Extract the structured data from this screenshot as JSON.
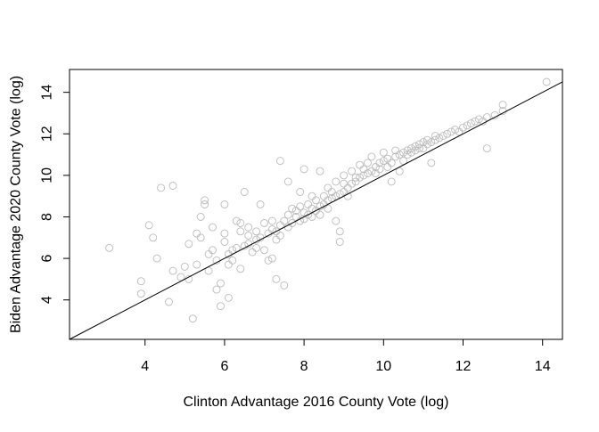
{
  "chart_data": {
    "type": "scatter",
    "title": "",
    "xlabel": "Clinton Advantage 2016 County Vote (log)",
    "ylabel": "Biden Advantage 2020 County Vote (log)",
    "xlim": [
      2.1,
      14.5
    ],
    "ylim": [
      2.1,
      15.1
    ],
    "xticks": [
      "4",
      "6",
      "8",
      "10",
      "12",
      "14"
    ],
    "yticks": [
      "4",
      "6",
      "8",
      "10",
      "12",
      "14"
    ],
    "grid": false,
    "point_style": "open-circle",
    "point_color": "#bbbbbb",
    "reference_line": {
      "label": "y = x",
      "color": "#000000"
    },
    "series": [
      {
        "points": [
          [
            3.1,
            6.5
          ],
          [
            3.9,
            4.3
          ],
          [
            3.9,
            4.9
          ],
          [
            4.1,
            7.6
          ],
          [
            4.2,
            7.0
          ],
          [
            4.3,
            6.0
          ],
          [
            4.4,
            9.4
          ],
          [
            4.6,
            3.9
          ],
          [
            4.7,
            5.4
          ],
          [
            4.7,
            9.5
          ],
          [
            4.9,
            5.1
          ],
          [
            5.0,
            5.6
          ],
          [
            5.1,
            6.7
          ],
          [
            5.1,
            5.0
          ],
          [
            5.2,
            3.1
          ],
          [
            5.3,
            7.2
          ],
          [
            5.3,
            5.7
          ],
          [
            5.4,
            8.0
          ],
          [
            5.4,
            7.0
          ],
          [
            5.5,
            8.6
          ],
          [
            5.5,
            8.8
          ],
          [
            5.6,
            6.2
          ],
          [
            5.6,
            5.4
          ],
          [
            5.7,
            7.5
          ],
          [
            5.7,
            6.4
          ],
          [
            5.8,
            5.9
          ],
          [
            5.8,
            4.5
          ],
          [
            5.9,
            4.8
          ],
          [
            5.9,
            3.7
          ],
          [
            6.0,
            6.8
          ],
          [
            6.0,
            7.2
          ],
          [
            6.0,
            8.6
          ],
          [
            6.1,
            5.7
          ],
          [
            6.1,
            6.2
          ],
          [
            6.1,
            4.1
          ],
          [
            6.2,
            5.9
          ],
          [
            6.2,
            6.4
          ],
          [
            6.3,
            7.8
          ],
          [
            6.3,
            6.5
          ],
          [
            6.4,
            7.7
          ],
          [
            6.4,
            7.3
          ],
          [
            6.4,
            5.5
          ],
          [
            6.5,
            6.6
          ],
          [
            6.5,
            9.2
          ],
          [
            6.6,
            6.7
          ],
          [
            6.6,
            7.1
          ],
          [
            6.6,
            7.5
          ],
          [
            6.7,
            6.3
          ],
          [
            6.8,
            6.9
          ],
          [
            6.8,
            7.3
          ],
          [
            6.8,
            6.5
          ],
          [
            6.9,
            7.0
          ],
          [
            6.9,
            8.6
          ],
          [
            7.0,
            7.7
          ],
          [
            7.0,
            6.4
          ],
          [
            7.1,
            5.9
          ],
          [
            7.1,
            7.2
          ],
          [
            7.2,
            7.8
          ],
          [
            7.2,
            7.4
          ],
          [
            7.2,
            6.0
          ],
          [
            7.3,
            7.3
          ],
          [
            7.3,
            6.9
          ],
          [
            7.3,
            5.0
          ],
          [
            7.4,
            7.1
          ],
          [
            7.4,
            7.6
          ],
          [
            7.4,
            10.7
          ],
          [
            7.5,
            7.8
          ],
          [
            7.5,
            4.7
          ],
          [
            7.6,
            8.1
          ],
          [
            7.6,
            7.5
          ],
          [
            7.6,
            9.7
          ],
          [
            7.7,
            7.7
          ],
          [
            7.7,
            8.4
          ],
          [
            7.8,
            8.0
          ],
          [
            7.8,
            8.3
          ],
          [
            7.9,
            7.8
          ],
          [
            7.9,
            9.2
          ],
          [
            7.9,
            8.5
          ],
          [
            8.0,
            8.2
          ],
          [
            8.0,
            7.9
          ],
          [
            8.0,
            10.3
          ],
          [
            8.1,
            8.1
          ],
          [
            8.1,
            8.6
          ],
          [
            8.2,
            8.4
          ],
          [
            8.2,
            8.0
          ],
          [
            8.2,
            9.0
          ],
          [
            8.3,
            8.3
          ],
          [
            8.3,
            8.8
          ],
          [
            8.4,
            8.5
          ],
          [
            8.4,
            8.1
          ],
          [
            8.4,
            10.2
          ],
          [
            8.5,
            8.6
          ],
          [
            8.5,
            9.0
          ],
          [
            8.6,
            8.8
          ],
          [
            8.6,
            8.4
          ],
          [
            8.6,
            9.4
          ],
          [
            8.7,
            8.9
          ],
          [
            8.7,
            9.2
          ],
          [
            8.8,
            9.0
          ],
          [
            8.8,
            7.8
          ],
          [
            8.8,
            9.7
          ],
          [
            8.9,
            6.8
          ],
          [
            8.9,
            7.3
          ],
          [
            8.9,
            9.1
          ],
          [
            9.0,
            9.2
          ],
          [
            9.0,
            9.6
          ],
          [
            9.0,
            10.0
          ],
          [
            9.1,
            9.4
          ],
          [
            9.1,
            9.0
          ],
          [
            9.2,
            9.6
          ],
          [
            9.2,
            10.2
          ],
          [
            9.3,
            9.7
          ],
          [
            9.3,
            9.9
          ],
          [
            9.4,
            9.9
          ],
          [
            9.4,
            10.5
          ],
          [
            9.5,
            10.0
          ],
          [
            9.5,
            10.3
          ],
          [
            9.6,
            10.1
          ],
          [
            9.6,
            10.6
          ],
          [
            9.7,
            10.2
          ],
          [
            9.7,
            10.9
          ],
          [
            9.8,
            10.4
          ],
          [
            9.8,
            10.1
          ],
          [
            9.9,
            10.6
          ],
          [
            9.9,
            10.3
          ],
          [
            10.0,
            10.7
          ],
          [
            10.0,
            11.1
          ],
          [
            10.1,
            10.8
          ],
          [
            10.1,
            10.4
          ],
          [
            10.2,
            10.6
          ],
          [
            10.2,
            9.7
          ],
          [
            10.3,
            10.9
          ],
          [
            10.3,
            11.2
          ],
          [
            10.4,
            11.0
          ],
          [
            10.4,
            10.2
          ],
          [
            10.5,
            11.1
          ],
          [
            10.5,
            10.7
          ],
          [
            10.6,
            11.2
          ],
          [
            10.6,
            11.0
          ],
          [
            10.7,
            11.3
          ],
          [
            10.7,
            11.1
          ],
          [
            10.8,
            11.4
          ],
          [
            10.8,
            11.2
          ],
          [
            10.9,
            11.5
          ],
          [
            10.9,
            11.3
          ],
          [
            11.0,
            11.6
          ],
          [
            11.0,
            11.3
          ],
          [
            11.1,
            11.5
          ],
          [
            11.1,
            11.7
          ],
          [
            11.2,
            11.6
          ],
          [
            11.2,
            10.6
          ],
          [
            11.3,
            11.7
          ],
          [
            11.3,
            11.9
          ],
          [
            11.4,
            11.8
          ],
          [
            11.5,
            11.9
          ],
          [
            11.6,
            12.0
          ],
          [
            11.7,
            12.1
          ],
          [
            11.8,
            12.2
          ],
          [
            11.9,
            12.1
          ],
          [
            12.0,
            12.3
          ],
          [
            12.1,
            12.4
          ],
          [
            12.2,
            12.5
          ],
          [
            12.3,
            12.6
          ],
          [
            12.4,
            12.7
          ],
          [
            12.5,
            12.6
          ],
          [
            12.6,
            12.8
          ],
          [
            12.6,
            11.3
          ],
          [
            12.8,
            12.9
          ],
          [
            13.0,
            13.1
          ],
          [
            13.0,
            13.4
          ],
          [
            14.1,
            14.5
          ]
        ]
      }
    ]
  }
}
